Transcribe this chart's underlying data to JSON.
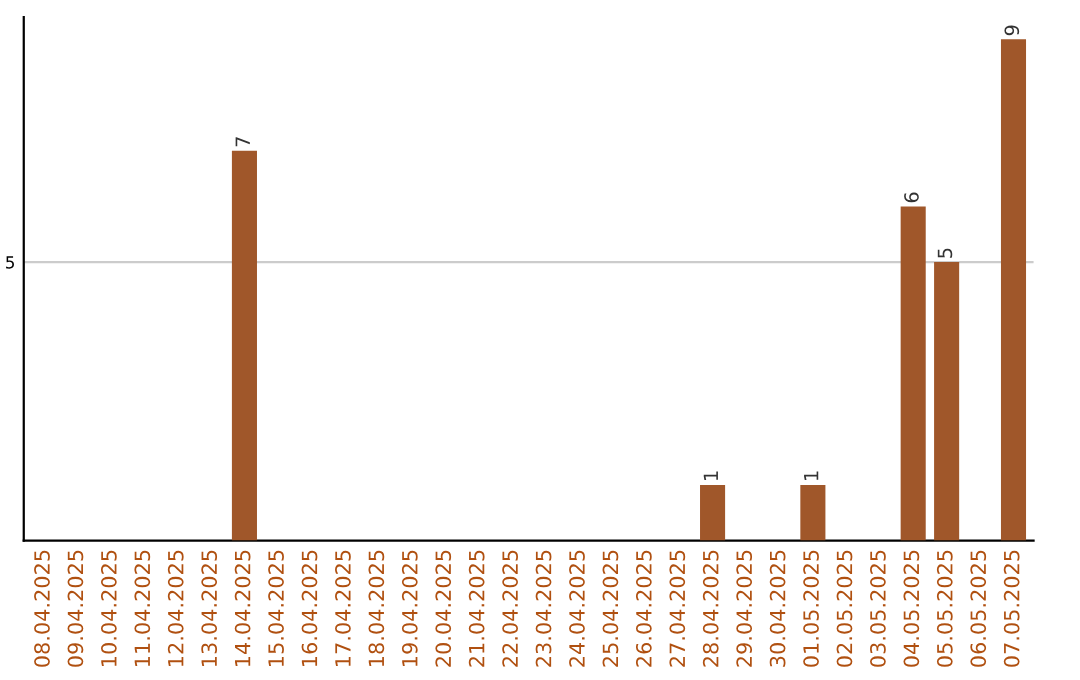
{
  "chart_data": {
    "type": "bar",
    "categories": [
      "08.04.2025",
      "09.04.2025",
      "10.04.2025",
      "11.04.2025",
      "12.04.2025",
      "13.04.2025",
      "14.04.2025",
      "15.04.2025",
      "16.04.2025",
      "17.04.2025",
      "18.04.2025",
      "19.04.2025",
      "20.04.2025",
      "21.04.2025",
      "22.04.2025",
      "23.04.2025",
      "24.04.2025",
      "25.04.2025",
      "26.04.2025",
      "27.04.2025",
      "28.04.2025",
      "29.04.2025",
      "30.04.2025",
      "01.05.2025",
      "02.05.2025",
      "03.05.2025",
      "04.05.2025",
      "05.05.2025",
      "06.05.2025",
      "07.05.2025"
    ],
    "values": [
      0,
      0,
      0,
      0,
      0,
      0,
      7,
      0,
      0,
      0,
      0,
      0,
      0,
      0,
      0,
      0,
      0,
      0,
      0,
      0,
      1,
      0,
      0,
      1,
      0,
      0,
      6,
      5,
      0,
      9
    ],
    "value_labels": [
      null,
      null,
      null,
      null,
      null,
      null,
      "7",
      null,
      null,
      null,
      null,
      null,
      null,
      null,
      null,
      null,
      null,
      null,
      null,
      null,
      "1",
      null,
      null,
      "1",
      null,
      null,
      "6",
      "5",
      null,
      "9"
    ],
    "color": "#a0572a",
    "ylim": [
      0,
      9.4
    ],
    "yticks": [
      5
    ],
    "grid": "y"
  }
}
